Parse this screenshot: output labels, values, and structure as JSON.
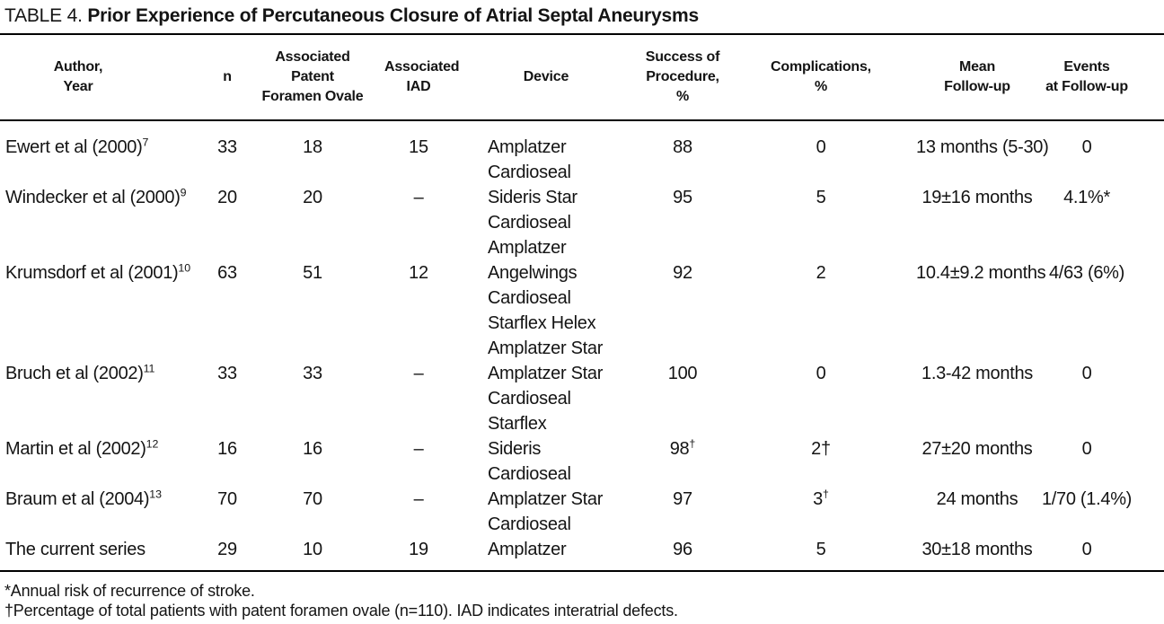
{
  "table": {
    "label": "TABLE 4.",
    "title": "Prior Experience of Percutaneous Closure of Atrial Septal Aneurysms",
    "columns": [
      {
        "id": "author",
        "lines": [
          "Author,",
          "Year"
        ]
      },
      {
        "id": "n",
        "lines": [
          "n"
        ]
      },
      {
        "id": "pfo",
        "lines": [
          "Associated",
          "Patent",
          "Foramen Ovale"
        ]
      },
      {
        "id": "iad",
        "lines": [
          "Associated",
          "IAD"
        ]
      },
      {
        "id": "device",
        "lines": [
          "Device"
        ]
      },
      {
        "id": "success",
        "lines": [
          "Success of",
          "Procedure,",
          "%"
        ]
      },
      {
        "id": "complications",
        "lines": [
          "Complications,",
          "%"
        ]
      },
      {
        "id": "followup",
        "lines": [
          "Mean",
          "Follow-up"
        ]
      },
      {
        "id": "events",
        "lines": [
          "Events",
          "at Follow-up"
        ]
      }
    ],
    "rows": [
      {
        "author": {
          "t": "Ewert et al (2000)",
          "sup": "7"
        },
        "n": "33",
        "pfo": "18",
        "iad": "15",
        "device": [
          "Amplatzer",
          "Cardioseal"
        ],
        "success": "88",
        "complications": "0",
        "followup": "13 months (5-30)",
        "events": "0"
      },
      {
        "author": {
          "t": "Windecker et al (2000)",
          "sup": "9"
        },
        "n": "20",
        "pfo": "20",
        "iad": "–",
        "device": [
          "Sideris Star",
          "Cardioseal",
          "Amplatzer"
        ],
        "success": "95",
        "complications": "5",
        "followup": "19±16 months",
        "events": "4.1%*"
      },
      {
        "author": {
          "t": "Krumsdorf et al (2001)",
          "sup": "10"
        },
        "n": "63",
        "pfo": "51",
        "iad": "12",
        "device": [
          "Angelwings",
          "Cardioseal",
          "Starflex Helex",
          "Amplatzer Star"
        ],
        "success": "92",
        "complications": "2",
        "followup": "10.4±9.2 months",
        "events": "4/63 (6%)"
      },
      {
        "author": {
          "t": "Bruch et al (2002)",
          "sup": "11"
        },
        "n": "33",
        "pfo": "33",
        "iad": "–",
        "device": [
          "Amplatzer Star",
          "Cardioseal",
          "Starflex"
        ],
        "success": "100",
        "complications": "0",
        "followup": "1.3-42 months",
        "events": "0"
      },
      {
        "author": {
          "t": "Martin et al (2002)",
          "sup": "12"
        },
        "n": "16",
        "pfo": "16",
        "iad": "–",
        "device": [
          "Sideris",
          "Cardioseal"
        ],
        "success": {
          "t": "98",
          "sup": "†"
        },
        "complications": "2†",
        "followup": "27±20 months",
        "events": "0"
      },
      {
        "author": {
          "t": "Braum et al (2004)",
          "sup": "13"
        },
        "n": "70",
        "pfo": "70",
        "iad": "–",
        "device": [
          "Amplatzer Star",
          "Cardioseal"
        ],
        "success": "97",
        "complications": {
          "t": "3",
          "sup": "†"
        },
        "followup": "24 months",
        "events": "1/70 (1.4%)"
      },
      {
        "author": {
          "t": "The current series",
          "sup": ""
        },
        "n": "29",
        "pfo": "10",
        "iad": "19",
        "device": [
          "Amplatzer"
        ],
        "success": "96",
        "complications": "5",
        "followup": "30±18 months",
        "events": "0"
      }
    ],
    "footnotes": [
      "*Annual risk of recurrence of stroke.",
      "†Percentage of total patients with patent foramen ovale (n=110). IAD indicates interatrial defects."
    ]
  }
}
